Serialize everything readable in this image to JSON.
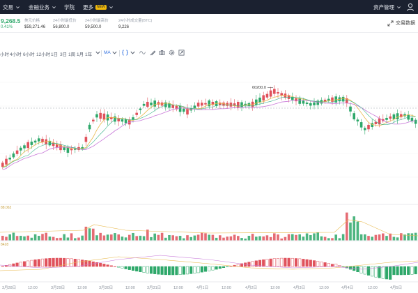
{
  "nav": {
    "items": [
      {
        "label": "交易",
        "chevron": true
      },
      {
        "label": "金融业务",
        "chevron": true
      },
      {
        "label": "学院",
        "chevron": false
      },
      {
        "label": "更多",
        "chevron": true,
        "badge": "NEW"
      }
    ],
    "asset_mgmt": "资产管理",
    "colors": {
      "bg": "#1b2130",
      "text": "#e6e9ef",
      "badge": "#f0b90b"
    }
  },
  "ticker": {
    "last_price": "9,268.5",
    "change_pct": "0.41%",
    "stats": [
      {
        "label": "美元价格",
        "value": "$59,271.46"
      },
      {
        "label": "24小时最低价",
        "value": "56,800.0"
      },
      {
        "label": "24小时最高价",
        "value": "59,500.0"
      },
      {
        "label": "24小时成交量(BTC)",
        "value": "9,226"
      }
    ],
    "trade_data": "交易数据"
  },
  "toolbar": {
    "intervals": [
      "小时",
      "4小时",
      "6小时",
      "12小时",
      "1日",
      "3日",
      "1周",
      "1月",
      "1年"
    ],
    "indicator": "MA"
  },
  "chart": {
    "high_label": "60200.0",
    "vol_label": "88.062",
    "macd_label": "8428",
    "x_labels": [
      "3月28日",
      "12:00",
      "3月29日",
      "12:00",
      "3月30日",
      "12:00",
      "3月31日",
      "12:00",
      "4月1日",
      "12:00",
      "4月2日",
      "12:00",
      "4月3日",
      "12:00",
      "4月4日",
      "12:00",
      "4月5日"
    ],
    "colors": {
      "up": "#2ea86a",
      "down": "#e0525c",
      "ma1": "#e8b84a",
      "ma2": "#c878d8",
      "ma3": "#3cb48c"
    }
  }
}
